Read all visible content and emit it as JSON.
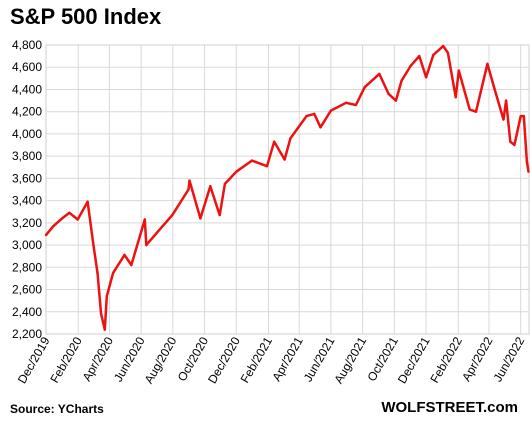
{
  "title": "S&P 500 Index",
  "source": "Source: YCharts",
  "brand": "WOLFSTREET.com",
  "chart_data": {
    "type": "line",
    "title": "S&P 500 Index",
    "xlabel": "",
    "ylabel": "",
    "ylim": [
      2200,
      4800
    ],
    "xlim": [
      "2019-12-01",
      "2022-06-17"
    ],
    "grid": true,
    "line_color": "#ee1111",
    "y_ticks": [
      "2,200",
      "2,400",
      "2,600",
      "2,800",
      "3,000",
      "3,200",
      "3,400",
      "3,600",
      "3,800",
      "4,000",
      "4,200",
      "4,400",
      "4,600",
      "4,800"
    ],
    "x_ticks": [
      "Dec/2019",
      "Feb/2020",
      "Apr/2020",
      "Jun/2020",
      "Aug/2020",
      "Oct/2020",
      "Dec/2020",
      "Feb/2021",
      "Apr/2021",
      "Jun/2021",
      "Aug/2021",
      "Oct/2021",
      "Dec/2021",
      "Feb/2022",
      "Apr/2022",
      "Jun/2022"
    ],
    "series": [
      {
        "x": [
          "2019-12-01",
          "2019-12-15",
          "2020-01-01",
          "2020-01-15",
          "2020-01-31",
          "2020-02-19",
          "2020-03-01",
          "2020-03-09",
          "2020-03-16",
          "2020-03-23",
          "2020-03-27",
          "2020-04-08",
          "2020-04-30",
          "2020-05-13",
          "2020-06-08",
          "2020-06-11",
          "2020-07-01",
          "2020-07-31",
          "2020-08-31",
          "2020-09-02",
          "2020-09-23",
          "2020-10-12",
          "2020-10-30",
          "2020-11-09",
          "2020-12-01",
          "2020-12-31",
          "2021-01-29",
          "2021-02-12",
          "2021-03-04",
          "2021-03-15",
          "2021-04-15",
          "2021-04-30",
          "2021-05-12",
          "2021-06-01",
          "2021-06-30",
          "2021-07-19",
          "2021-08-05",
          "2021-09-02",
          "2021-09-20",
          "2021-10-04",
          "2021-10-15",
          "2021-11-01",
          "2021-11-18",
          "2021-12-01",
          "2021-12-15",
          "2022-01-03",
          "2022-01-12",
          "2022-01-27",
          "2022-02-02",
          "2022-02-23",
          "2022-03-07",
          "2022-03-29",
          "2022-04-12",
          "2022-04-29",
          "2022-05-04",
          "2022-05-12",
          "2022-05-20",
          "2022-06-01",
          "2022-06-07",
          "2022-06-13",
          "2022-06-16"
        ],
        "y": [
          3090,
          3170,
          3240,
          3290,
          3230,
          3390,
          3010,
          2750,
          2380,
          2240,
          2540,
          2750,
          2912,
          2820,
          3230,
          3000,
          3110,
          3270,
          3500,
          3580,
          3240,
          3530,
          3270,
          3550,
          3660,
          3760,
          3710,
          3930,
          3770,
          3960,
          4160,
          4180,
          4060,
          4210,
          4280,
          4260,
          4420,
          4540,
          4360,
          4300,
          4480,
          4610,
          4700,
          4510,
          4710,
          4790,
          4730,
          4330,
          4570,
          4220,
          4200,
          4630,
          4400,
          4130,
          4300,
          3930,
          3900,
          4160,
          4160,
          3750,
          3660
        ]
      }
    ]
  }
}
